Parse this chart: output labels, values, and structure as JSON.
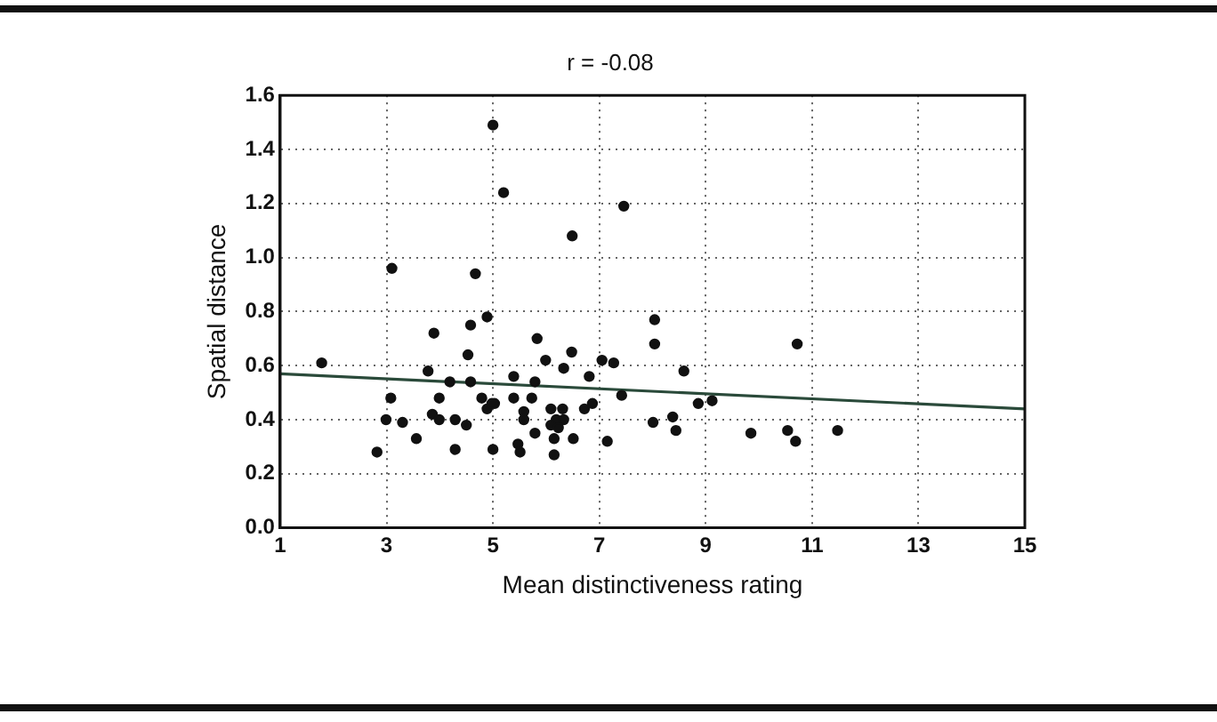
{
  "chart_data": {
    "type": "scatter",
    "title": "r = -0.08",
    "xlabel": "Mean distinctiveness rating",
    "ylabel": "Spatial distance",
    "xlim": [
      1,
      15
    ],
    "xticks": [
      1,
      3,
      5,
      7,
      9,
      11,
      13,
      15
    ],
    "ylim": [
      0,
      1.6
    ],
    "yticks": [
      {
        "value": 0,
        "label": "0.0"
      },
      0.2,
      0.4,
      0.6,
      0.8,
      {
        "value": 1,
        "label": "1.0"
      },
      1.2,
      1.4,
      1.6
    ],
    "grid": true,
    "legend": false,
    "marker": "circle",
    "series": [
      {
        "type": "scatter",
        "color": "#111111",
        "x": [
          1.78,
          3.1,
          4.67,
          3.89,
          4.58,
          4.89,
          4.53,
          3.78,
          5.83,
          5.99,
          6.48,
          6.33,
          6.81,
          7.05,
          7.27,
          4.19,
          4.58,
          5.39,
          5.79,
          7.42,
          3.08,
          3.99,
          4.79,
          5.03,
          5.39,
          5.73,
          2.99,
          3.3,
          3.86,
          3.99,
          4.29,
          4.5,
          4.89,
          4.98,
          5.58,
          5.58,
          6.09,
          6.31,
          6.19,
          6.33,
          6.09,
          6.23,
          6.15,
          5.79,
          6.72,
          6.87,
          3.56,
          2.82,
          4.29,
          5.0,
          5.47,
          5.51,
          6.15,
          6.51,
          7.15,
          5.0,
          5.2,
          6.49,
          7.46,
          8.04,
          8.04,
          8.59,
          8.86,
          9.12,
          8.01,
          8.38,
          8.44,
          9.85,
          10.54,
          10.69,
          10.72,
          11.48
        ],
        "values": [
          0.61,
          0.96,
          0.94,
          0.72,
          0.75,
          0.78,
          0.64,
          0.58,
          0.7,
          0.62,
          0.65,
          0.59,
          0.56,
          0.62,
          0.61,
          0.54,
          0.54,
          0.56,
          0.54,
          0.49,
          0.48,
          0.48,
          0.48,
          0.46,
          0.48,
          0.48,
          0.4,
          0.39,
          0.42,
          0.4,
          0.4,
          0.38,
          0.44,
          0.46,
          0.43,
          0.4,
          0.44,
          0.44,
          0.4,
          0.4,
          0.38,
          0.37,
          0.33,
          0.35,
          0.44,
          0.46,
          0.33,
          0.28,
          0.29,
          0.29,
          0.31,
          0.28,
          0.27,
          0.33,
          0.32,
          1.49,
          1.24,
          1.08,
          1.19,
          0.77,
          0.68,
          0.58,
          0.46,
          0.47,
          0.39,
          0.41,
          0.36,
          0.35,
          0.36,
          0.32,
          0.68,
          0.36
        ]
      },
      {
        "type": "line",
        "color": "#2a4a3a",
        "x": [
          1,
          15
        ],
        "values": [
          0.57,
          0.44
        ],
        "marker": "none",
        "line_style": "solid"
      }
    ]
  }
}
